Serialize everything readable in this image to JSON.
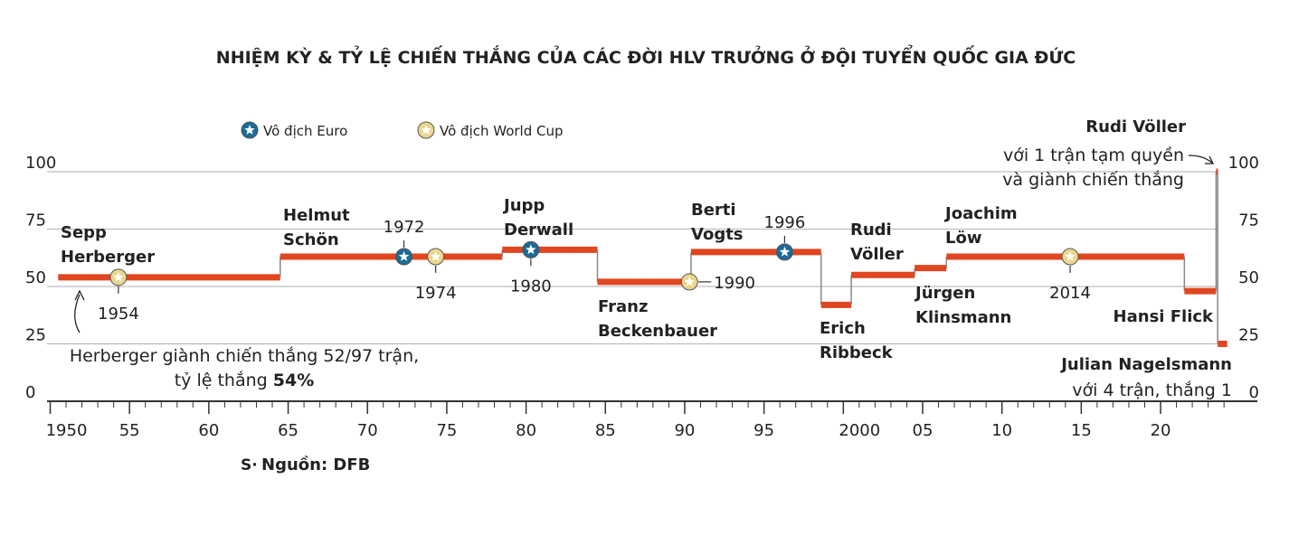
{
  "chart_data": {
    "type": "step",
    "title": "NHIỆM KỲ & TỶ LỆ CHIẾN THẮNG CỦA CÁC ĐỜI HLV TRƯỞNG Ở ĐỘI TUYỂN QUỐC GIA ĐỨC",
    "color": "#e0461f",
    "legend": [
      {
        "name": "Vô địch Euro",
        "color": "#1c6b97",
        "years": [
          1972,
          1980,
          1996
        ]
      },
      {
        "name": "Vô địch World Cup",
        "color": "#ead68e",
        "years": [
          1954,
          1974,
          1990,
          2014
        ]
      }
    ],
    "coaches": [
      {
        "name": [
          "Sepp",
          "Herberger"
        ],
        "start": 1950.5,
        "end": 1964.5,
        "value": 54
      },
      {
        "name": [
          "Helmut",
          "Schön"
        ],
        "start": 1964.5,
        "end": 1978.5,
        "value": 63
      },
      {
        "name": [
          "Jupp",
          "Derwall"
        ],
        "start": 1978.5,
        "end": 1984.5,
        "value": 66
      },
      {
        "name": [
          "Franz",
          "Beckenbauer"
        ],
        "start": 1984.5,
        "end": 1990.4,
        "value": 52
      },
      {
        "name": [
          "Berti",
          "Vogts"
        ],
        "start": 1990.4,
        "end": 1998.6,
        "value": 65
      },
      {
        "name": [
          "Erich",
          "Ribbeck"
        ],
        "start": 1998.6,
        "end": 2000.5,
        "value": 42
      },
      {
        "name": [
          "Rudi",
          "Völler"
        ],
        "start": 2000.5,
        "end": 2004.5,
        "value": 55
      },
      {
        "name": [
          "Jürgen",
          "Klinsmann"
        ],
        "start": 2004.5,
        "end": 2006.5,
        "value": 58
      },
      {
        "name": [
          "Joachim",
          "Löw"
        ],
        "start": 2006.5,
        "end": 2021.5,
        "value": 63
      },
      {
        "name": [
          "Hansi Flick"
        ],
        "start": 2021.5,
        "end": 2023.5,
        "value": 48
      },
      {
        "name": [
          "Rudi Völler"
        ],
        "start": 2023.5,
        "end": 2023.6,
        "value": 100
      },
      {
        "name": [
          "Julian Nagelsmann"
        ],
        "start": 2023.6,
        "end": 2024.2,
        "value": 25
      }
    ],
    "annotations": {
      "herberger": [
        "Herberger giành chiến thắng 52/97 trận,",
        "tỷ lệ thắng ",
        "54%"
      ],
      "voller": [
        "với 1 trận tạm quyền",
        "và giành chiến thắng"
      ],
      "nagelsmann": "với 4 trận, thắng 1"
    },
    "source": "Nguồn: DFB",
    "xlim": [
      1949.8,
      2026.1
    ],
    "xticks": [
      {
        "value": 1950,
        "label": "1950"
      },
      {
        "value": 1955,
        "label": "55"
      },
      {
        "value": 1960,
        "label": "60"
      },
      {
        "value": 1965,
        "label": "65"
      },
      {
        "value": 1970,
        "label": "70"
      },
      {
        "value": 1975,
        "label": "75"
      },
      {
        "value": 1980,
        "label": "80"
      },
      {
        "value": 1985,
        "label": "85"
      },
      {
        "value": 1990,
        "label": "90"
      },
      {
        "value": 1995,
        "label": "95"
      },
      {
        "value": 2000,
        "label": "2000"
      },
      {
        "value": 2005,
        "label": "05"
      },
      {
        "value": 2010,
        "label": "10"
      },
      {
        "value": 2015,
        "label": "15"
      },
      {
        "value": 2020,
        "label": "20"
      }
    ],
    "ylim": [
      0,
      100
    ],
    "yticks": [
      0,
      25,
      50,
      75,
      100
    ],
    "grid": true
  }
}
